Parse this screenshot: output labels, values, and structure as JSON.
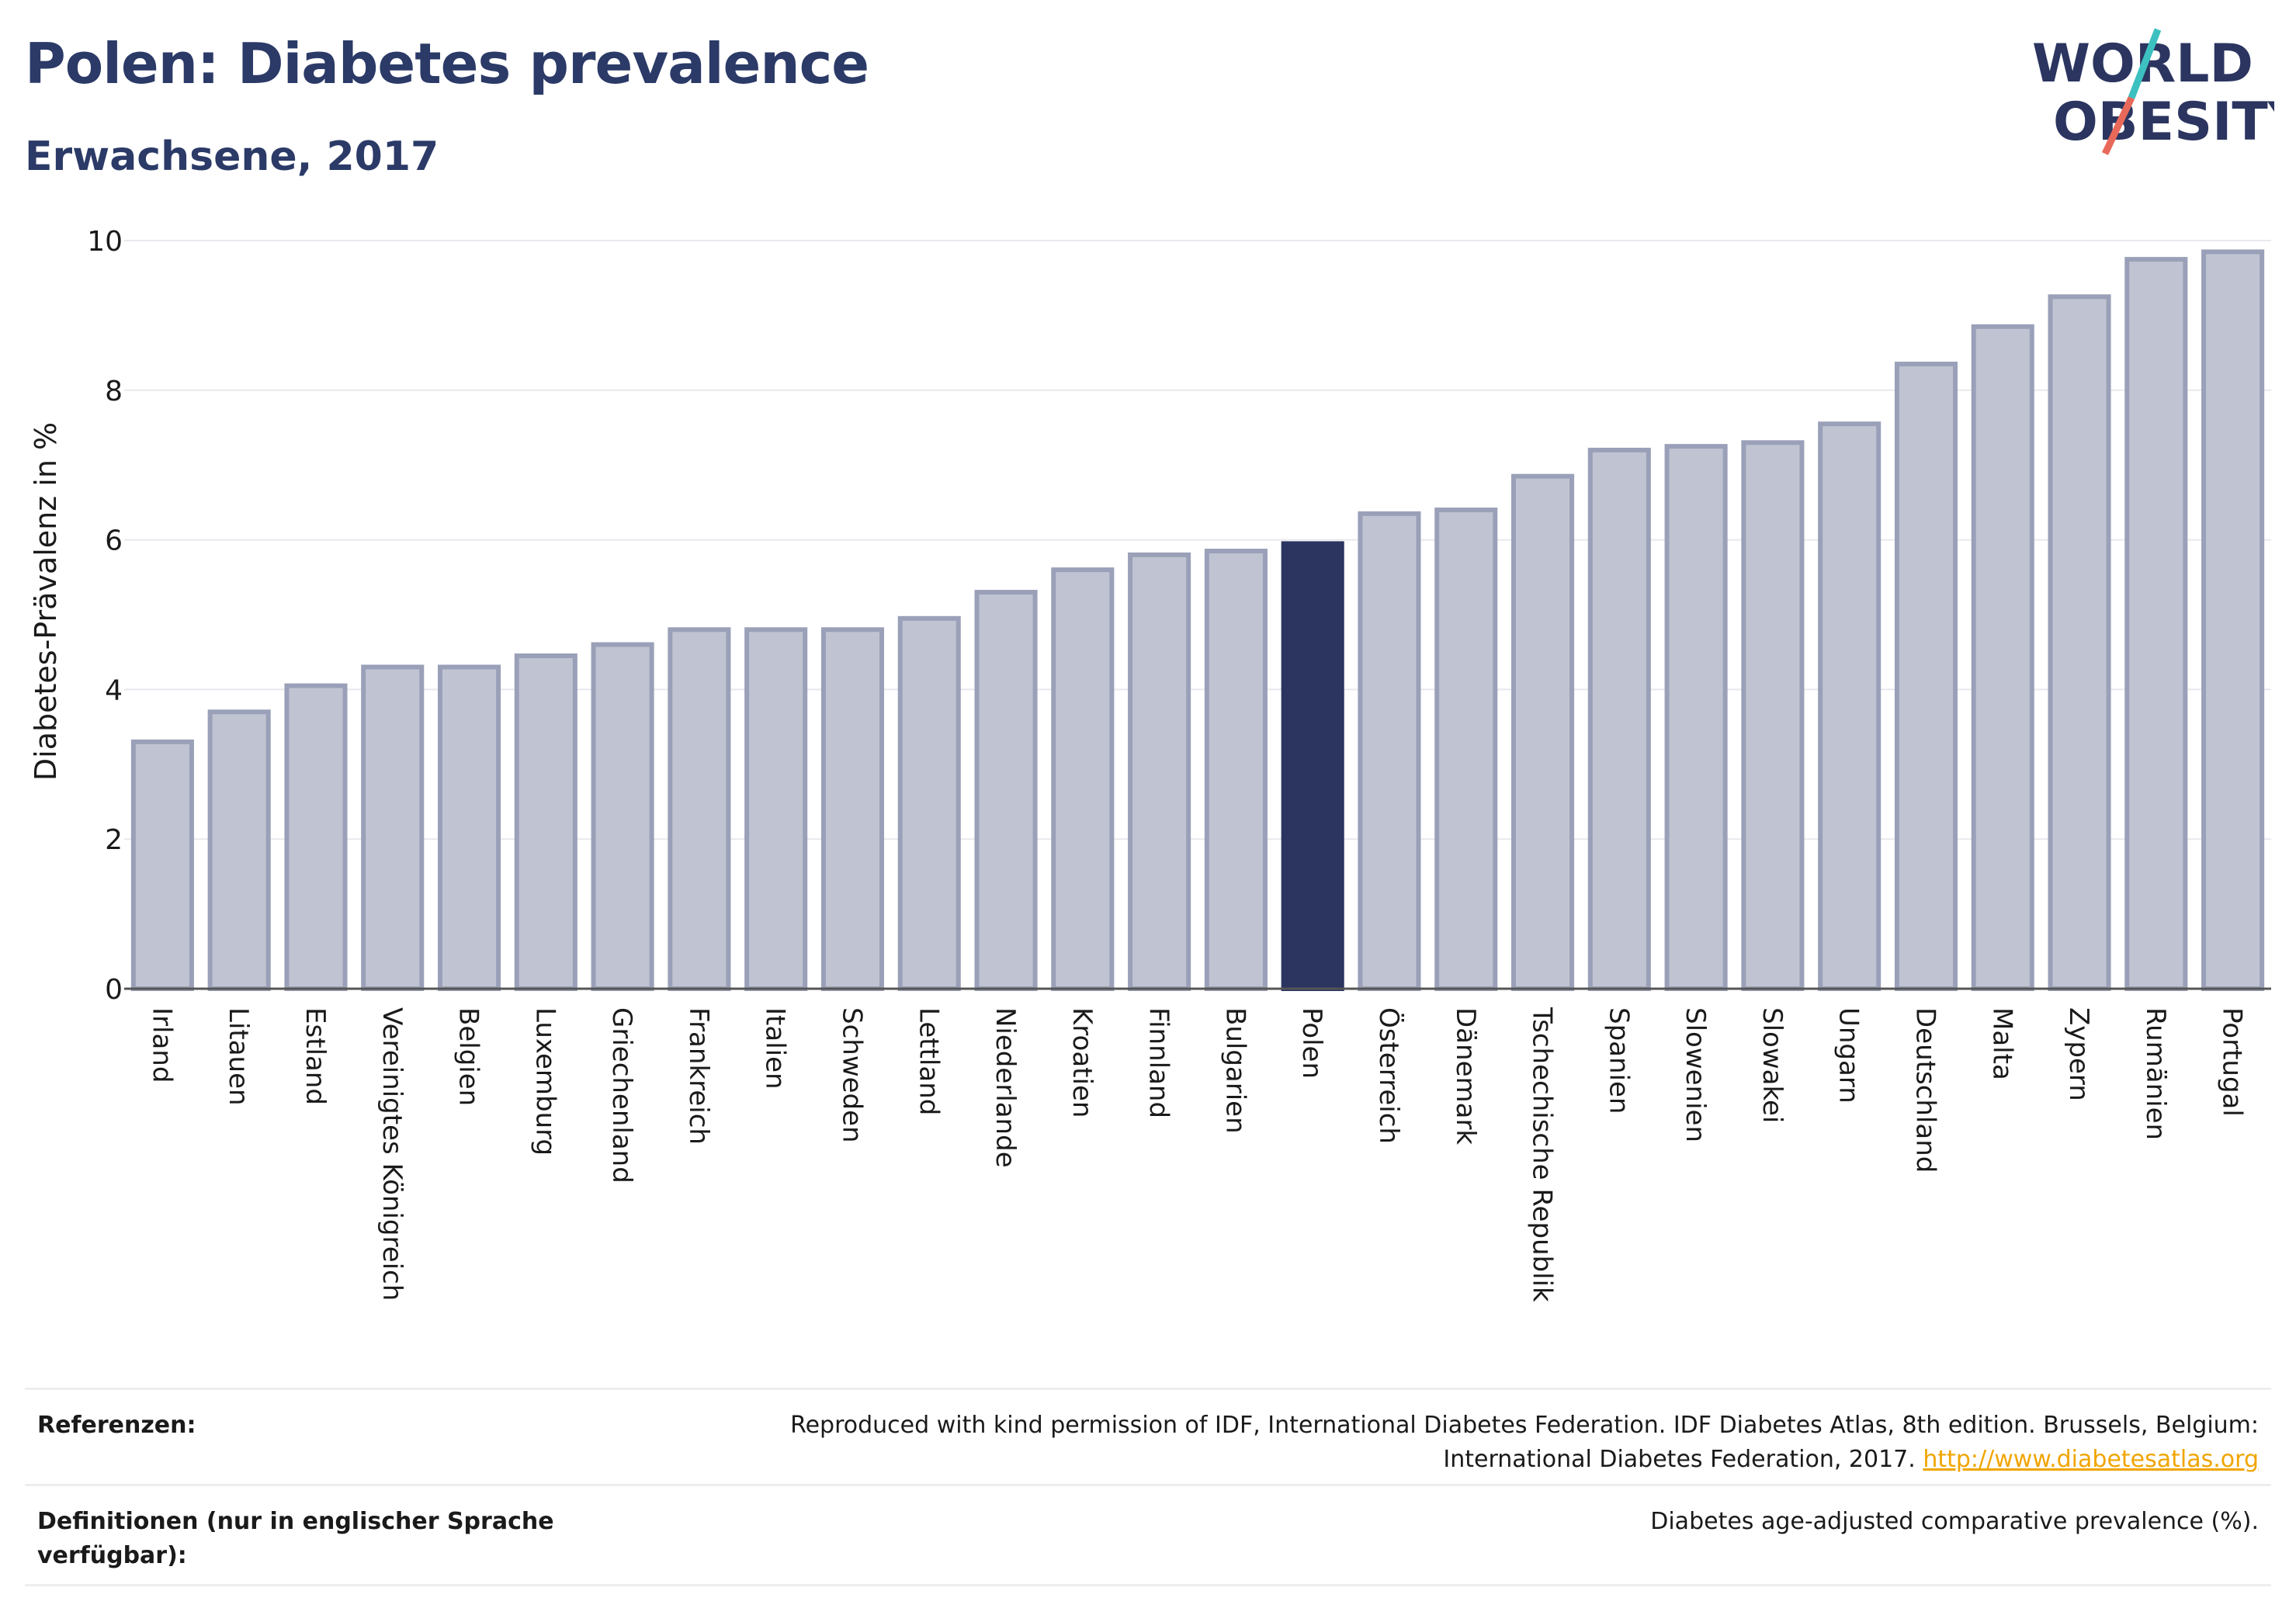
{
  "header": {
    "title": "Polen: Diabetes prevalence",
    "subtitle": "Erwachsene, 2017"
  },
  "logo": {
    "line1": "WORLD",
    "line2": "OBESITY"
  },
  "chart_data": {
    "type": "bar",
    "ylabel": "Diabetes-Prävalenz in %",
    "xlabel": "",
    "ylim": [
      0,
      10
    ],
    "yticks": [
      0,
      2,
      4,
      6,
      8,
      10
    ],
    "grid": true,
    "highlight": "Polen",
    "colors": {
      "bar": "#c0c4d2",
      "bar_border": "#9aa0b8",
      "highlight": "#2b3560",
      "grid": "#e8e8ee",
      "axis": "#555555"
    },
    "categories": [
      "Irland",
      "Litauen",
      "Estland",
      "Vereinigtes Königreich",
      "Belgien",
      "Luxemburg",
      "Griechenland",
      "Frankreich",
      "Italien",
      "Schweden",
      "Lettland",
      "Niederlande",
      "Kroatien",
      "Finnland",
      "Bulgarien",
      "Polen",
      "Österreich",
      "Dänemark",
      "Tschechische Republik",
      "Spanien",
      "Slowenien",
      "Slowakei",
      "Ungarn",
      "Deutschland",
      "Malta",
      "Zypern",
      "Rumänien",
      "Portugal"
    ],
    "values": [
      3.3,
      3.7,
      4.05,
      4.3,
      4.3,
      4.45,
      4.6,
      4.8,
      4.8,
      4.8,
      4.95,
      5.3,
      5.6,
      5.8,
      5.85,
      5.95,
      6.35,
      6.4,
      6.85,
      7.2,
      7.25,
      7.3,
      7.55,
      8.35,
      8.85,
      9.25,
      9.75,
      9.85
    ]
  },
  "footer": {
    "references_label": "Referenzen:",
    "references_text_line1": "Reproduced with kind permission of IDF, International Diabetes Federation. IDF Diabetes Atlas, 8th edition. Brussels, Belgium:",
    "references_text_line2": "International Diabetes Federation, 2017.",
    "references_link": "http://www.diabetesatlas.org",
    "definitions_label_line1": "Definitionen (nur in englischer Sprache",
    "definitions_label_line2": "verfügbar):",
    "definitions_text": "Diabetes age-adjusted comparative prevalence (%)."
  }
}
